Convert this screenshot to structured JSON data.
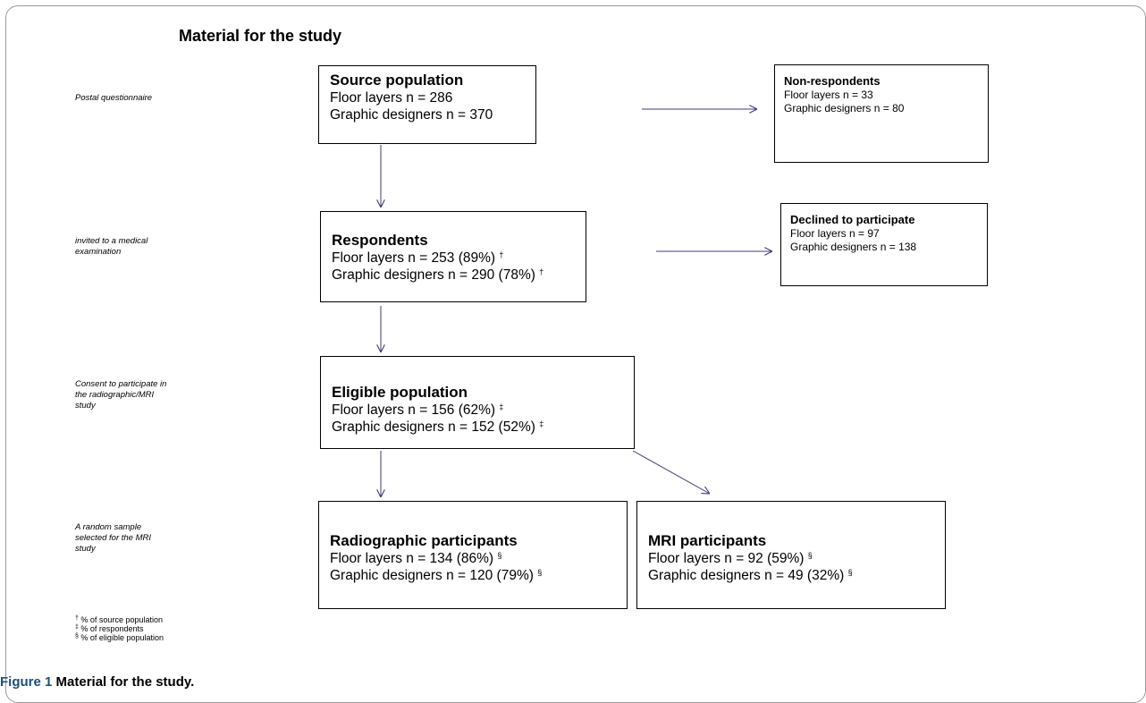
{
  "title": "Material for the study",
  "side_labels": {
    "postal": "Postal questionnaire",
    "invited": [
      "invited to a medical",
      "examination"
    ],
    "consent": [
      "Consent to participate in",
      "the radiographic/MRI",
      "study"
    ],
    "random": [
      "A random sample",
      "selected for the MRI",
      "study"
    ]
  },
  "boxes": {
    "source": {
      "heading": "Source population",
      "lines": [
        "Floor layers n = 286",
        "Graphic designers n = 370"
      ]
    },
    "nonresp": {
      "heading": "Non-respondents",
      "lines": [
        "Floor layers n = 33",
        "Graphic designers n = 80"
      ]
    },
    "respondents": {
      "heading": "Respondents",
      "lines": [
        "Floor layers n = 253 (89%)",
        "Graphic designers n = 290 (78%)"
      ],
      "mark": "†"
    },
    "declined": {
      "heading": "Declined to participate",
      "lines": [
        "Floor layers n = 97",
        "Graphic designers n = 138"
      ]
    },
    "eligible": {
      "heading": "Eligible population",
      "lines": [
        "Floor layers n = 156 (62%)",
        "Graphic designers n = 152 (52%)"
      ],
      "mark": "‡"
    },
    "radiographic": {
      "heading": "Radiographic participants",
      "lines": [
        "Floor layers n = 134 (86%)",
        "Graphic designers n = 120 (79%)"
      ],
      "mark": "§"
    },
    "mri": {
      "heading": "MRI participants",
      "lines": [
        "Floor layers n = 92 (59%)",
        "Graphic designers n = 49 (32%)"
      ],
      "mark": "§"
    }
  },
  "footnotes": [
    {
      "mark": "†",
      "text": "% of source population"
    },
    {
      "mark": "‡",
      "text": "% of respondents"
    },
    {
      "mark": "§",
      "text": "% of eligible population"
    }
  ],
  "caption": {
    "figure": "Figure 1",
    "text": "Material for the study."
  },
  "colors": {
    "arrow": "#3c3c7a",
    "frame": "#9a9a9a",
    "caption_fig": "#1f4e79"
  }
}
